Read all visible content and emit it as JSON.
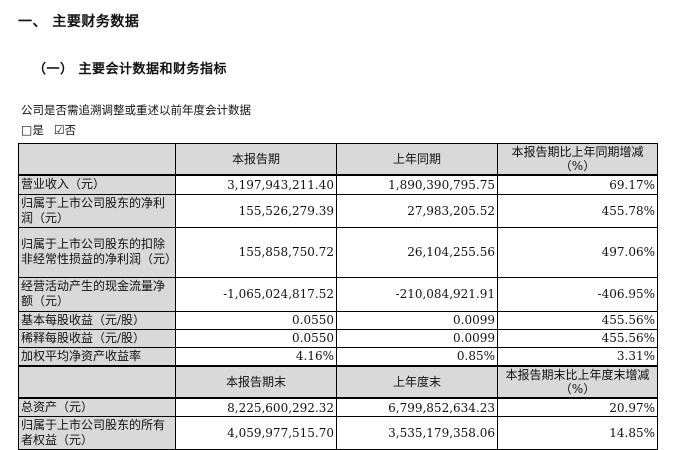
{
  "document": {
    "title": "一、 主要财务数据",
    "subtitle": "（一） 主要会计数据和财务指标",
    "note": "公司是否需追溯调整或重述以前年度会计数据",
    "checkbox_yes_icon": "□",
    "checkbox_yes_label": "是",
    "checkbox_no_icon": "☑",
    "checkbox_no_label": "否"
  },
  "colors": {
    "header_bg": "#d9d9d9",
    "border": "#000000",
    "page_bg": "#ffffff"
  },
  "table": {
    "section1": {
      "col_current": "本报告期",
      "col_prior": "上年同期",
      "col_change": "本报告期比上年同期增减（%）",
      "rows": [
        {
          "label": "营业收入（元）",
          "current": "3,197,943,211.40",
          "prior": "1,890,390,795.75",
          "change": "69.17%"
        },
        {
          "label": "归属于上市公司股东的净利润（元）",
          "current": "155,526,279.39",
          "prior": "27,983,205.52",
          "change": "455.78%"
        },
        {
          "label": "归属于上市公司股东的扣除非经常性损益的净利润（元）",
          "current": "155,858,750.72",
          "prior": "26,104,255.56",
          "change": "497.06%"
        },
        {
          "label": "经营活动产生的现金流量净额（元）",
          "current": "-1,065,024,817.52",
          "prior": "-210,084,921.91",
          "change": "-406.95%"
        },
        {
          "label": "基本每股收益（元/股）",
          "current": "0.0550",
          "prior": "0.0099",
          "change": "455.56%"
        },
        {
          "label": "稀释每股收益（元/股）",
          "current": "0.0550",
          "prior": "0.0099",
          "change": "455.56%"
        },
        {
          "label": "加权平均净资产收益率",
          "current": "4.16%",
          "prior": "0.85%",
          "change": "3.31%"
        }
      ]
    },
    "section2": {
      "col_current": "本报告期末",
      "col_prior": "上年度末",
      "col_change": "本报告期末比上年度末增减（%）",
      "rows": [
        {
          "label": "总资产（元）",
          "current": "8,225,600,292.32",
          "prior": "6,799,852,634.23",
          "change": "20.97%"
        },
        {
          "label": "归属于上市公司股东的所有者权益（元）",
          "current": "4,059,977,515.70",
          "prior": "3,535,179,358.06",
          "change": "14.85%"
        }
      ]
    }
  }
}
